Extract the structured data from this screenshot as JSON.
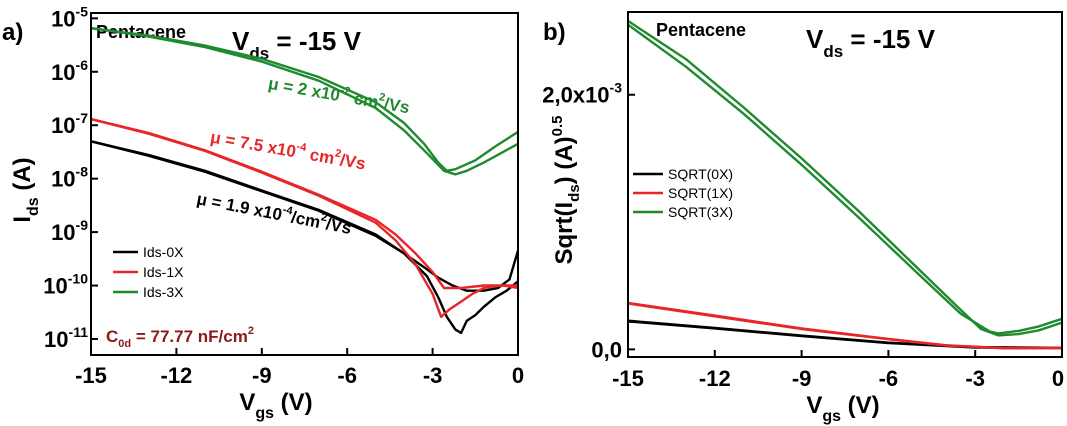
{
  "colors": {
    "black": "#000000",
    "red": "#e8262a",
    "green": "#1f8a2f",
    "maroon": "#8b1a1a"
  },
  "chart_data": [
    {
      "type": "line",
      "panel_label": "a)",
      "material": "Pentacene",
      "vds_label": {
        "main": "V",
        "sub": "ds",
        "value": " = -15 V"
      },
      "xlabel": {
        "main": "V",
        "sub": "gs",
        "unit": " (V)"
      },
      "ylabel": {
        "main": "I",
        "sub": "ds",
        "unit": " (A)"
      },
      "xlim": [
        -15,
        0
      ],
      "ylim_log10": [
        -11.3,
        -4.9
      ],
      "yscale": "log",
      "x_ticks": [
        -15,
        -12,
        -9,
        -6,
        -3,
        0
      ],
      "x_tick_labels": [
        "-15",
        "-12",
        "-9",
        "-6",
        "-3",
        "0"
      ],
      "y_ticks_exp": [
        -11,
        -10,
        -9,
        -8,
        -7,
        -6,
        -5
      ],
      "y_tick_base": "10",
      "y_tick_exps": [
        "-11",
        "-10",
        "-9",
        "-8",
        "-7",
        "-6",
        "-5"
      ],
      "legend": {
        "position": "lower-left",
        "entries": [
          "Ids-0X",
          "Ids-1X",
          "Ids-3X"
        ]
      },
      "annotations": {
        "green": {
          "pre": "μ = 2 x10",
          "sup": "-2",
          "mid": " cm",
          "sup2": "2",
          "post": "/Vs"
        },
        "red": {
          "pre": "μ = 7.5 x10",
          "sup": "-4",
          "mid": " cm",
          "sup2": "2",
          "post": "/Vs"
        },
        "black": {
          "pre": "μ = 1.9 x10",
          "sup": "-4",
          "mid": "/cm",
          "sup2": "2",
          "post": "/Vs"
        },
        "capacitance": {
          "pre": "C",
          "sub": "0d",
          "mid": " = 77.77 nF/cm",
          "sup": "2"
        }
      },
      "series": [
        {
          "name": "Ids-0X",
          "color": "#000000",
          "forward": [
            [
              -15,
              5e-08
            ],
            [
              -13,
              2.8e-08
            ],
            [
              -11,
              1.4e-08
            ],
            [
              -9,
              6e-09
            ],
            [
              -7,
              2.6e-09
            ],
            [
              -5,
              9e-10
            ],
            [
              -4,
              4e-10
            ],
            [
              -3.2,
              1.5e-10
            ],
            [
              -2.8,
              6e-11
            ],
            [
              -2.5,
              2.6e-11
            ],
            [
              -2.2,
              1.5e-11
            ],
            [
              -2.0,
              1.3e-11
            ],
            [
              -1.8,
              2.2e-11
            ],
            [
              -1.5,
              2.8e-11
            ],
            [
              -1.2,
              4e-11
            ],
            [
              -0.8,
              6e-11
            ],
            [
              -0.4,
              8e-11
            ],
            [
              0,
              1.2e-10
            ]
          ],
          "reverse": [
            [
              0,
              4.5e-10
            ],
            [
              -0.3,
              1.3e-10
            ],
            [
              -0.7,
              9e-11
            ],
            [
              -1.2,
              8e-11
            ],
            [
              -1.8,
              8e-11
            ],
            [
              -2.3,
              1e-10
            ],
            [
              -2.8,
              1.4e-10
            ],
            [
              -3.3,
              2.2e-10
            ],
            [
              -4,
              4e-10
            ],
            [
              -5,
              8.5e-10
            ],
            [
              -7,
              2.5e-09
            ],
            [
              -9,
              5.8e-09
            ],
            [
              -11,
              1.35e-08
            ],
            [
              -13,
              2.7e-08
            ],
            [
              -15,
              5e-08
            ]
          ]
        },
        {
          "name": "Ids-1X",
          "color": "#e8262a",
          "forward": [
            [
              -15,
              1.3e-07
            ],
            [
              -13,
              7e-08
            ],
            [
              -11,
              3.3e-08
            ],
            [
              -9,
              1.3e-08
            ],
            [
              -7,
              4.8e-09
            ],
            [
              -5,
              1.5e-09
            ],
            [
              -4.3,
              7e-10
            ],
            [
              -3.6,
              2.5e-10
            ],
            [
              -3.0,
              7e-11
            ],
            [
              -2.7,
              2.6e-11
            ],
            [
              -2.4,
              3.6e-11
            ],
            [
              -2.0,
              5e-11
            ],
            [
              -1.6,
              7e-11
            ],
            [
              -1.2,
              9e-11
            ],
            [
              -0.6,
              1e-10
            ],
            [
              0,
              1e-10
            ]
          ],
          "reverse": [
            [
              0,
              9e-11
            ],
            [
              -0.5,
              1e-10
            ],
            [
              -1.2,
              1e-10
            ],
            [
              -2.0,
              9e-11
            ],
            [
              -2.6,
              9e-11
            ],
            [
              -3.0,
              1.8e-10
            ],
            [
              -3.6,
              4e-10
            ],
            [
              -4.3,
              9e-10
            ],
            [
              -5,
              1.7e-09
            ],
            [
              -7,
              5e-09
            ],
            [
              -9,
              1.35e-08
            ],
            [
              -11,
              3.4e-08
            ],
            [
              -13,
              7.2e-08
            ],
            [
              -15,
              1.3e-07
            ]
          ]
        },
        {
          "name": "Ids-3X",
          "color": "#1f8a2f",
          "forward": [
            [
              -15,
              6.5e-06
            ],
            [
              -13,
              4.8e-06
            ],
            [
              -11,
              3.1e-06
            ],
            [
              -9,
              1.75e-06
            ],
            [
              -7,
              8e-07
            ],
            [
              -5,
              2.7e-07
            ],
            [
              -4,
              1.1e-07
            ],
            [
              -3.3,
              4.5e-08
            ],
            [
              -2.8,
              2e-08
            ],
            [
              -2.5,
              1.4e-08
            ],
            [
              -2.2,
              1.5e-08
            ],
            [
              -1.5,
              2.2e-08
            ],
            [
              -0.8,
              4e-08
            ],
            [
              0,
              7.5e-08
            ]
          ],
          "reverse": [
            [
              0,
              4.5e-08
            ],
            [
              -0.6,
              3e-08
            ],
            [
              -1.2,
              2e-08
            ],
            [
              -1.8,
              1.4e-08
            ],
            [
              -2.2,
              1.2e-08
            ],
            [
              -2.6,
              1.4e-08
            ],
            [
              -3.2,
              3e-08
            ],
            [
              -4,
              8e-08
            ],
            [
              -5,
              2.1e-07
            ],
            [
              -7,
              6.8e-07
            ],
            [
              -9,
              1.55e-06
            ],
            [
              -11,
              2.9e-06
            ],
            [
              -13,
              4.6e-06
            ],
            [
              -15,
              6.6e-06
            ]
          ]
        }
      ]
    },
    {
      "type": "line",
      "panel_label": "b)",
      "material": "Pentacene",
      "vds_label": {
        "main": "V",
        "sub": "ds",
        "value": " = -15 V"
      },
      "xlabel": {
        "main": "V",
        "sub": "gs",
        "unit": " (V)"
      },
      "ylabel": {
        "pre": "Sqrt(I",
        "sub": "ds",
        "mid": ") (A)",
        "sup": "0.5"
      },
      "xlim": [
        -15,
        0
      ],
      "ylim": [
        -6e-05,
        0.00265
      ],
      "x_ticks": [
        -15,
        -12,
        -9,
        -6,
        -3,
        0
      ],
      "x_tick_labels": [
        "-15",
        "-12",
        "-9",
        "-6",
        "-3",
        "0"
      ],
      "y_ticks": [
        0,
        0.002
      ],
      "y_tick_labels": [
        {
          "text": "0,0"
        },
        {
          "text": "2,0x10",
          "sup": "-3"
        }
      ],
      "legend": {
        "position": "top-left",
        "entries": [
          "SQRT(0X)",
          "SQRT(1X)",
          "SQRT(3X)"
        ]
      },
      "series": [
        {
          "name": "SQRT(0X)",
          "color": "#000000",
          "forward": [
            [
              -15,
              0.00022
            ],
            [
              -12,
              0.000165
            ],
            [
              -9,
              0.000105
            ],
            [
              -6,
              5e-05
            ],
            [
              -3,
              1.5e-05
            ],
            [
              0,
              1e-05
            ]
          ],
          "reverse": [
            [
              0,
              1.2e-05
            ],
            [
              -3,
              1.8e-05
            ],
            [
              -6,
              5.2e-05
            ],
            [
              -9,
              0.000108
            ],
            [
              -12,
              0.000168
            ],
            [
              -15,
              0.000225
            ]
          ]
        },
        {
          "name": "SQRT(1X)",
          "color": "#e8262a",
          "forward": [
            [
              -15,
              0.00036
            ],
            [
              -12,
              0.00026
            ],
            [
              -9,
              0.00016
            ],
            [
              -6,
              8e-05
            ],
            [
              -4,
              3e-05
            ],
            [
              -2,
              8e-06
            ],
            [
              0,
              1e-05
            ]
          ],
          "reverse": [
            [
              0,
              1.2e-05
            ],
            [
              -2,
              1e-05
            ],
            [
              -4,
              3.2e-05
            ],
            [
              -6,
              8.2e-05
            ],
            [
              -9,
              0.000165
            ],
            [
              -12,
              0.000265
            ],
            [
              -15,
              0.000365
            ]
          ]
        },
        {
          "name": "SQRT(3X)",
          "color": "#1f8a2f",
          "forward": [
            [
              -15,
              0.00255
            ],
            [
              -13,
              0.00222
            ],
            [
              -11,
              0.00185
            ],
            [
              -9,
              0.00145
            ],
            [
              -7,
              0.00103
            ],
            [
              -5,
              0.0006
            ],
            [
              -3.5,
              0.00028
            ],
            [
              -2.5,
              0.00014
            ],
            [
              -2.2,
              0.000125
            ],
            [
              -1.5,
              0.000145
            ],
            [
              -0.8,
              0.00018
            ],
            [
              0,
              0.00024
            ]
          ],
          "reverse": [
            [
              0,
              0.00021
            ],
            [
              -0.8,
              0.00015
            ],
            [
              -1.5,
              0.00012
            ],
            [
              -2.2,
              0.00011
            ],
            [
              -2.8,
              0.00016
            ],
            [
              -3.5,
              0.00031
            ],
            [
              -5,
              0.00064
            ],
            [
              -7,
              0.00108
            ],
            [
              -9,
              0.0015
            ],
            [
              -11,
              0.0019
            ],
            [
              -13,
              0.00228
            ],
            [
              -15,
              0.00258
            ]
          ]
        }
      ]
    }
  ]
}
